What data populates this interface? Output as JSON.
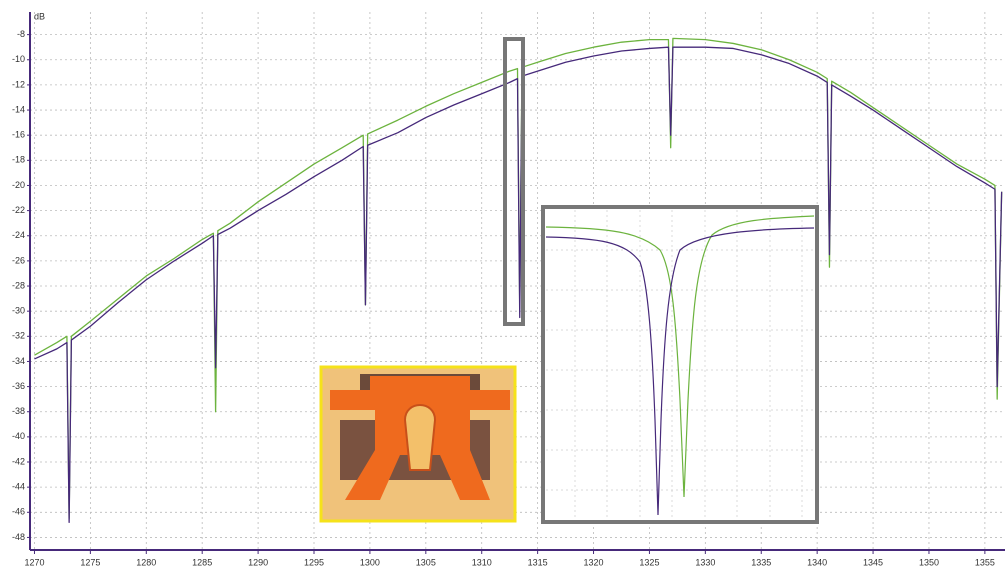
{
  "chart_data": {
    "type": "line",
    "y_label": "dB",
    "x": [
      1270,
      1272,
      1272.9,
      1273.1,
      1273.3,
      1275,
      1277.5,
      1280,
      1282.5,
      1285,
      1286.0,
      1286.2,
      1286.4,
      1287.5,
      1290,
      1292.5,
      1295,
      1297.5,
      1299.4,
      1299.6,
      1299.8,
      1302.5,
      1305,
      1307.5,
      1310,
      1312.5,
      1313.2,
      1313.4,
      1313.6,
      1315,
      1317.5,
      1320,
      1322.5,
      1325,
      1326.7,
      1326.9,
      1327.1,
      1330,
      1332.5,
      1335,
      1337.5,
      1340,
      1340.9,
      1341.1,
      1341.3,
      1343,
      1345,
      1347.5,
      1350,
      1352.5,
      1355,
      1355.9,
      1356.1,
      1356.5
    ],
    "series": [
      {
        "color": "#6cb33e",
        "values": [
          -33.5,
          -32.5,
          -32,
          -46.5,
          -32,
          -30.8,
          -29,
          -27.2,
          -25.8,
          -24.3,
          -23.8,
          -38,
          -23.6,
          -23,
          -21.3,
          -19.8,
          -18.3,
          -17,
          -16,
          -29.5,
          -15.9,
          -14.8,
          -13.7,
          -12.7,
          -11.8,
          -10.9,
          -10.7,
          -29.8,
          -10.6,
          -10.2,
          -9.5,
          -9,
          -8.6,
          -8.4,
          -8.4,
          -17,
          -8.3,
          -8.4,
          -8.7,
          -9.2,
          -10,
          -11,
          -11.5,
          -26.5,
          -11.7,
          -12.6,
          -13.8,
          -15.3,
          -16.8,
          -18.3,
          -19.5,
          -20,
          -37,
          -20.5
        ]
      },
      {
        "color": "#46297a",
        "values": [
          -33.8,
          -33,
          -32.5,
          -46.8,
          -32.3,
          -31.2,
          -29.3,
          -27.5,
          -26,
          -24.6,
          -24,
          -34.5,
          -23.9,
          -23.4,
          -22,
          -20.7,
          -19.3,
          -18,
          -16.9,
          -29.5,
          -16.8,
          -15.8,
          -14.6,
          -13.6,
          -12.7,
          -11.8,
          -11.5,
          -30.5,
          -11.3,
          -10.9,
          -10.2,
          -9.7,
          -9.3,
          -9.1,
          -9,
          -16,
          -9,
          -9,
          -9.1,
          -9.6,
          -10.3,
          -11.3,
          -11.8,
          -25.5,
          -12,
          -12.9,
          -14,
          -15.5,
          -17,
          -18.5,
          -19.8,
          -20.3,
          -36,
          -20.5
        ]
      }
    ],
    "xlim": [
      1269.6,
      1356.8
    ],
    "ylim": [
      -49,
      -6.2
    ],
    "xticks": [
      1270,
      1275,
      1280,
      1285,
      1290,
      1295,
      1300,
      1305,
      1310,
      1315,
      1320,
      1325,
      1330,
      1335,
      1340,
      1345,
      1350,
      1355
    ],
    "yticks": [
      -8,
      -10,
      -12,
      -14,
      -16,
      -18,
      -20,
      -22,
      -24,
      -26,
      -28,
      -30,
      -32,
      -34,
      -36,
      -38,
      -40,
      -42,
      -44,
      -46,
      -48
    ],
    "grid": true
  }
}
